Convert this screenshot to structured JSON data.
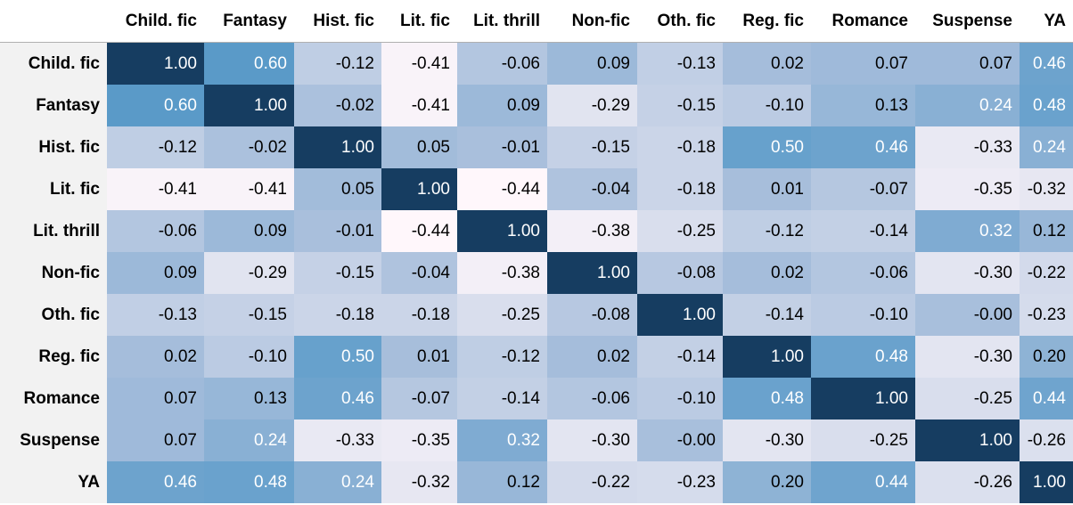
{
  "chart_data": {
    "type": "heatmap",
    "columns": [
      "Child. fic",
      "Fantasy",
      "Hist. fic",
      "Lit. fic",
      "Lit. thrill",
      "Non-fic",
      "Oth. fic",
      "Reg. fic",
      "Romance",
      "Suspense",
      "YA"
    ],
    "rows": [
      "Child. fic",
      "Fantasy",
      "Hist. fic",
      "Lit. fic",
      "Lit. thrill",
      "Non-fic",
      "Oth. fic",
      "Reg. fic",
      "Romance",
      "Suspense",
      "YA"
    ],
    "values": [
      [
        "1.00",
        "0.60",
        "-0.12",
        "-0.41",
        "-0.06",
        "0.09",
        "-0.13",
        "0.02",
        "0.07",
        "0.07",
        "0.46"
      ],
      [
        "0.60",
        "1.00",
        "-0.02",
        "-0.41",
        "0.09",
        "-0.29",
        "-0.15",
        "-0.10",
        "0.13",
        "0.24",
        "0.48"
      ],
      [
        "-0.12",
        "-0.02",
        "1.00",
        "0.05",
        "-0.01",
        "-0.15",
        "-0.18",
        "0.50",
        "0.46",
        "-0.33",
        "0.24"
      ],
      [
        "-0.41",
        "-0.41",
        "0.05",
        "1.00",
        "-0.44",
        "-0.04",
        "-0.18",
        "0.01",
        "-0.07",
        "-0.35",
        "-0.32"
      ],
      [
        "-0.06",
        "0.09",
        "-0.01",
        "-0.44",
        "1.00",
        "-0.38",
        "-0.25",
        "-0.12",
        "-0.14",
        "0.32",
        "0.12"
      ],
      [
        "0.09",
        "-0.29",
        "-0.15",
        "-0.04",
        "-0.38",
        "1.00",
        "-0.08",
        "0.02",
        "-0.06",
        "-0.30",
        "-0.22"
      ],
      [
        "-0.13",
        "-0.15",
        "-0.18",
        "-0.18",
        "-0.25",
        "-0.08",
        "1.00",
        "-0.14",
        "-0.10",
        "-0.00",
        "-0.23"
      ],
      [
        "0.02",
        "-0.10",
        "0.50",
        "0.01",
        "-0.12",
        "0.02",
        "-0.14",
        "1.00",
        "0.48",
        "-0.30",
        "0.20"
      ],
      [
        "0.07",
        "0.13",
        "0.46",
        "-0.07",
        "-0.14",
        "-0.06",
        "-0.10",
        "0.48",
        "1.00",
        "-0.25",
        "0.44"
      ],
      [
        "0.07",
        "0.24",
        "-0.33",
        "-0.35",
        "0.32",
        "-0.30",
        "-0.00",
        "-0.30",
        "-0.25",
        "1.00",
        "-0.26"
      ],
      [
        "0.46",
        "0.48",
        "0.24",
        "-0.32",
        "0.12",
        "-0.22",
        "-0.23",
        "0.20",
        "0.44",
        "-0.26",
        "1.00"
      ]
    ],
    "color_scale": {
      "low_color": "#fff7fb",
      "mid_color": "#a9bfdc",
      "high_color": "#5b9bc9",
      "max_color": "#163d61"
    }
  }
}
